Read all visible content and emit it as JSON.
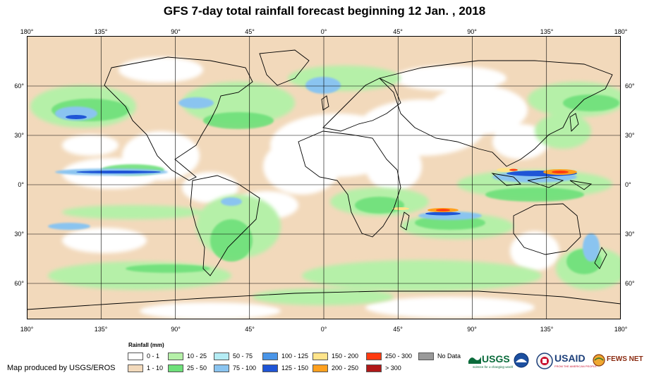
{
  "title": "GFS 7-day total rainfall forecast beginning 12 Jan. , 2018",
  "axes": {
    "lon_labels": [
      "180°",
      "135°",
      "90°",
      "45°",
      "0°",
      "45°",
      "90°",
      "135°",
      "180°"
    ],
    "lat_labels": [
      "60°",
      "30°",
      "0°",
      "30°",
      "60°"
    ]
  },
  "legend": {
    "title": "Rainfall (mm)",
    "items": [
      {
        "label": "0 - 1",
        "color": "#ffffff"
      },
      {
        "label": "1 - 10",
        "color": "#f2d9bb"
      },
      {
        "label": "10 - 25",
        "color": "#b5f0a8"
      },
      {
        "label": "25 - 50",
        "color": "#6ee07a"
      },
      {
        "label": "50 - 75",
        "color": "#b4ecf4"
      },
      {
        "label": "75 - 100",
        "color": "#8ac4f0"
      },
      {
        "label": "100 - 125",
        "color": "#4a95e8"
      },
      {
        "label": "125 - 150",
        "color": "#1f55d6"
      },
      {
        "label": "150 - 200",
        "color": "#ffe48a"
      },
      {
        "label": "200 - 250",
        "color": "#ffa01e"
      },
      {
        "label": "250 - 300",
        "color": "#ff3a10"
      },
      {
        "label": "> 300",
        "color": "#b01818"
      },
      {
        "label": "No Data",
        "color": "#9a9a9a"
      }
    ]
  },
  "credit": "Map produced by USGS/EROS",
  "logos": {
    "usgs": "USGS",
    "usgs_tagline": "science for a changing world",
    "usaid": "USAID",
    "usaid_tagline": "FROM THE AMERICAN PEOPLE",
    "fewsnet": "FEWS NET",
    "noaa_icon": "noaa-icon",
    "dos_icon": "state-department-seal-icon"
  }
}
